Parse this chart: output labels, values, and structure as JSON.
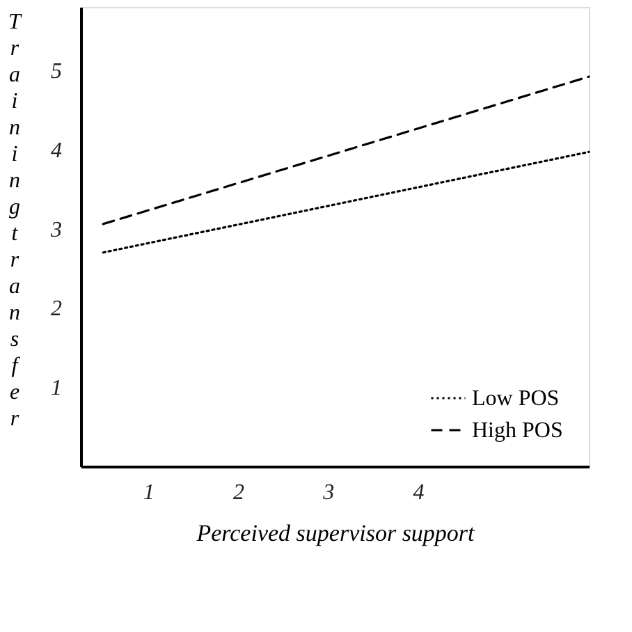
{
  "chart_data": {
    "type": "line",
    "xlabel": "Perceived supervisor support",
    "ylabel": "Training transfer",
    "x": [
      0.5,
      5.9
    ],
    "series": [
      {
        "name": "Low POS",
        "color": "#000000",
        "line_style": "dotted",
        "values": [
          2.7,
          3.97
        ]
      },
      {
        "name": "High POS",
        "color": "#000000",
        "line_style": "dashed",
        "values": [
          3.06,
          4.92
        ]
      }
    ],
    "xlim": [
      0.25,
      5.9
    ],
    "xticks": [
      1,
      2,
      3,
      4
    ],
    "ylim": [
      0,
      5.8
    ],
    "yticks": [
      1,
      2,
      3,
      4,
      5
    ],
    "grid": false,
    "legend": "bottom right",
    "marker": "none"
  }
}
